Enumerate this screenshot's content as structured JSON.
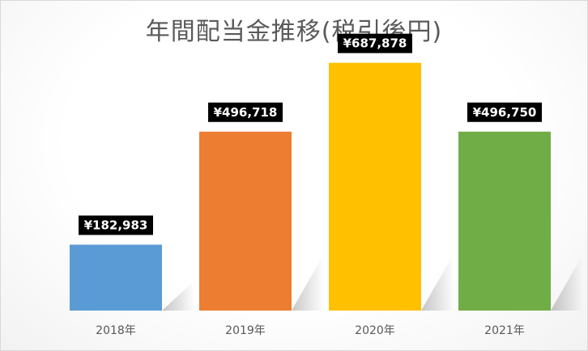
{
  "chart_data": {
    "type": "bar",
    "title": "年間配当金推移(税引後円)",
    "categories": [
      "2018年",
      "2019年",
      "2020年",
      "2021年"
    ],
    "values": [
      182983,
      496718,
      687878,
      496750
    ],
    "data_labels": [
      "¥182,983",
      "¥496,718",
      "¥687,878",
      "¥496,750"
    ],
    "colors": [
      "#5B9BD5",
      "#ED7D31",
      "#FFC000",
      "#70AD47"
    ],
    "ylim": [
      0,
      750000
    ],
    "grid": false,
    "legend": "none"
  }
}
